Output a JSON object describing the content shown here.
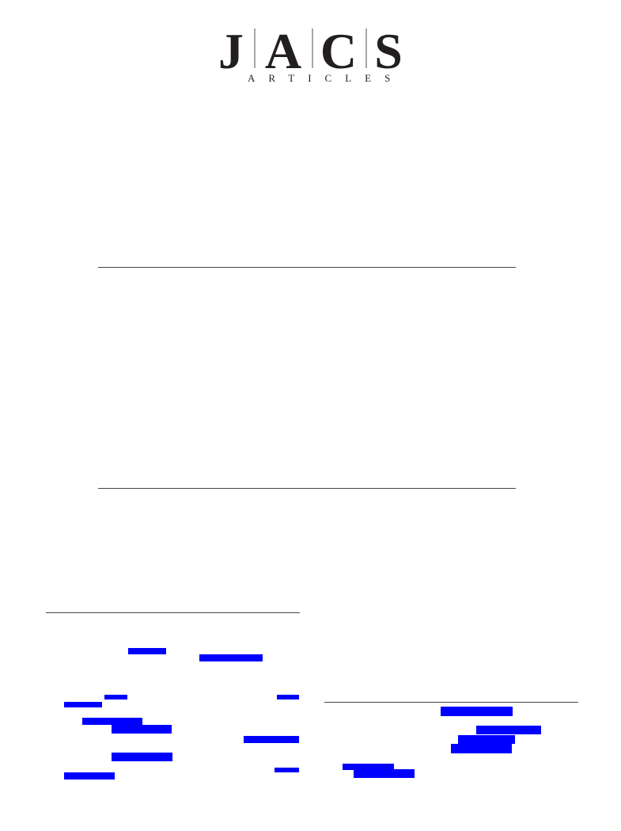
{
  "header": {
    "logo_letters": [
      "J",
      "A",
      "C",
      "S"
    ],
    "subtitle": "ARTICLES"
  }
}
